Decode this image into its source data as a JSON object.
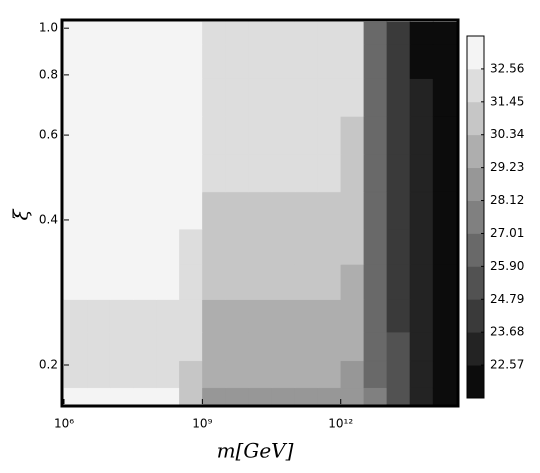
{
  "chart_data": {
    "type": "contour",
    "xlabel": "m[GeV]",
    "ylabel": "ξ",
    "xscale": "log",
    "yscale": "log",
    "xlim": [
      1000000.0,
      316000000000000.0
    ],
    "ylim": [
      0.166,
      1.03
    ],
    "xticks": [
      {
        "value": 1000000.0,
        "label": "10⁶"
      },
      {
        "value": 1000000000.0,
        "label": "10⁹"
      },
      {
        "value": 1000000000000.0,
        "label": "10¹²"
      }
    ],
    "yticks": [
      {
        "value": 0.2,
        "label": "0.2"
      },
      {
        "value": 0.4,
        "label": "0.4"
      },
      {
        "value": 0.6,
        "label": "0.6"
      },
      {
        "value": 0.8,
        "label": "0.8"
      },
      {
        "value": 1.0,
        "label": "1.0"
      }
    ],
    "x": [
      1780000.0,
      5620000.0,
      17800000.0,
      56200000.0,
      178000000.0,
      562000000.0,
      1780000000.0,
      5620000000.0,
      17800000000.0,
      56200000000.0,
      178000000000.0,
      562000000000.0,
      1780000000000.0,
      5620000000000.0,
      17800000000000.0,
      56200000000000.0,
      178000000000000.0
    ],
    "y": [
      0.17,
      0.19,
      0.22,
      0.25,
      0.3,
      0.35,
      0.42,
      0.5,
      0.6,
      0.72,
      0.86,
      1.0
    ],
    "z": [
      [
        33.4,
        33.4,
        33.4,
        33.4,
        33.3,
        31.0,
        28.8,
        28.8,
        28.8,
        28.8,
        28.8,
        28.8,
        28.5,
        27.5,
        25.5,
        23.5,
        22.0
      ],
      [
        31.6,
        31.6,
        31.6,
        31.6,
        31.6,
        31.0,
        29.6,
        29.6,
        29.6,
        29.6,
        29.6,
        29.5,
        29.0,
        27.0,
        25.0,
        23.3,
        21.9
      ],
      [
        32.0,
        32.0,
        32.0,
        32.0,
        32.0,
        31.8,
        30.0,
        30.0,
        30.0,
        30.0,
        30.0,
        30.0,
        29.8,
        26.8,
        24.8,
        23.2,
        21.8
      ],
      [
        32.3,
        32.3,
        32.3,
        32.3,
        32.3,
        32.0,
        30.3,
        30.3,
        30.3,
        30.3,
        30.3,
        30.3,
        29.6,
        26.6,
        24.7,
        23.1,
        21.8
      ],
      [
        32.6,
        32.6,
        32.6,
        32.6,
        32.6,
        32.4,
        30.9,
        30.9,
        30.9,
        30.9,
        30.9,
        30.9,
        30.2,
        26.5,
        24.6,
        23.0,
        21.7
      ],
      [
        32.8,
        32.8,
        32.8,
        32.8,
        32.8,
        32.5,
        31.2,
        31.2,
        31.2,
        31.2,
        31.2,
        31.2,
        30.5,
        26.4,
        24.5,
        22.9,
        21.7
      ],
      [
        33.0,
        33.0,
        33.0,
        33.0,
        33.0,
        32.6,
        31.4,
        31.4,
        31.4,
        31.4,
        31.4,
        31.4,
        30.8,
        26.3,
        24.4,
        22.8,
        21.6
      ],
      [
        33.0,
        33.0,
        33.0,
        33.0,
        33.0,
        32.7,
        31.6,
        31.6,
        31.6,
        31.6,
        31.6,
        31.6,
        31.0,
        26.2,
        24.3,
        22.7,
        21.6
      ],
      [
        33.1,
        33.1,
        33.1,
        33.1,
        33.1,
        32.8,
        31.8,
        31.8,
        31.8,
        31.8,
        31.8,
        31.8,
        31.3,
        26.1,
        24.2,
        22.6,
        21.6
      ],
      [
        33.1,
        33.1,
        33.1,
        33.1,
        33.1,
        32.8,
        32.0,
        32.0,
        32.0,
        32.0,
        32.0,
        32.0,
        31.5,
        26.0,
        24.1,
        22.6,
        21.6
      ],
      [
        33.1,
        33.1,
        33.1,
        33.1,
        33.1,
        32.8,
        32.1,
        32.1,
        32.1,
        32.1,
        32.1,
        32.1,
        31.7,
        26.0,
        24.1,
        22.5,
        21.6
      ],
      [
        33.1,
        33.1,
        33.1,
        33.1,
        33.1,
        32.8,
        32.1,
        32.1,
        32.1,
        32.1,
        32.1,
        32.1,
        31.7,
        26.0,
        24.1,
        22.5,
        21.6
      ]
    ],
    "zlim": [
      21.46,
      33.67
    ],
    "zticks": [
      32.56,
      31.45,
      30.34,
      29.23,
      28.12,
      27.01,
      25.9,
      24.79,
      23.68,
      22.57
    ],
    "zticks_labels": [
      "32.56",
      "31.45",
      "30.34",
      "29.23",
      "28.12",
      "27.01",
      "25.90",
      "24.79",
      "23.68",
      "22.57"
    ]
  }
}
